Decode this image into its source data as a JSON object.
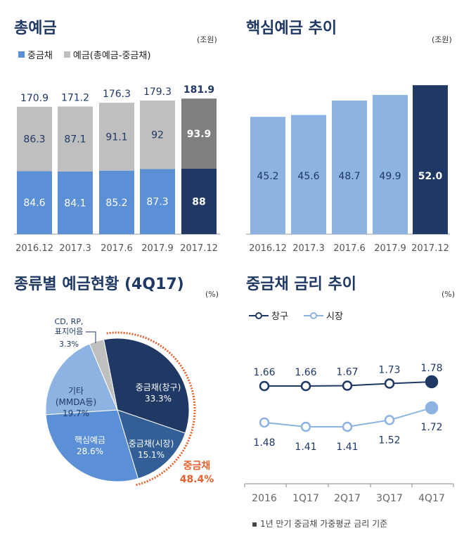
{
  "chart_data": [
    {
      "type": "bar",
      "stacked": true,
      "title": "총예금",
      "unit": "(조원)",
      "categories": [
        "2016.12",
        "2017.3",
        "2017.6",
        "2017.9",
        "2017.12"
      ],
      "series": [
        {
          "name": "중금채",
          "values": [
            84.6,
            84.1,
            85.2,
            87.3,
            88.0
          ]
        },
        {
          "name": "예금(총예금-중금채)",
          "values": [
            86.3,
            87.1,
            91.1,
            92.0,
            93.9
          ]
        }
      ],
      "totals": [
        170.9,
        171.2,
        176.3,
        179.3,
        181.9
      ],
      "colors": {
        "bond": "#5b8fd6",
        "deposit": "#bfbfbf",
        "bond_last": "#1f3864",
        "deposit_last": "#7f7f7f"
      }
    },
    {
      "type": "bar",
      "title": "핵심예금 추이",
      "unit": "(조원)",
      "categories": [
        "2016.12",
        "2017.3",
        "2017.6",
        "2017.9",
        "2017.12"
      ],
      "values": [
        45.2,
        45.6,
        48.7,
        49.9,
        52.0
      ],
      "colors": {
        "bar": "#8db3e2",
        "last": "#1f3864"
      }
    },
    {
      "type": "pie",
      "title": "종류별 예금현황 (4Q17)",
      "unit": "(%)",
      "slices": [
        {
          "label": "중금채(창구)",
          "value": 33.3,
          "color": "#1f3864"
        },
        {
          "label": "중금채(시장)",
          "value": 15.1,
          "color": "#335f96"
        },
        {
          "label": "핵심예금",
          "value": 28.6,
          "color": "#5b8fd6"
        },
        {
          "label": "기타 (MMDA등)",
          "value": 19.7,
          "color": "#8db3e2"
        },
        {
          "label": "CD, RP, 표지어음",
          "value": 3.3,
          "color": "#bfbfbf"
        }
      ],
      "group_label": "중금채",
      "group_value": "48.4%",
      "group_color": "#e8602c"
    },
    {
      "type": "line",
      "title": "중금채 금리 추이",
      "unit": "(%)",
      "categories": [
        "2016",
        "1Q17",
        "2Q17",
        "3Q17",
        "4Q17"
      ],
      "series": [
        {
          "name": "창구",
          "values": [
            1.66,
            1.66,
            1.67,
            1.73,
            1.78
          ],
          "color": "#1f3864"
        },
        {
          "name": "시장",
          "values": [
            1.48,
            1.41,
            1.41,
            1.52,
            1.72
          ],
          "color": "#8db3e2"
        }
      ],
      "note": "▪ 1년 만기 중금채 가중평균 금리 기준"
    }
  ]
}
